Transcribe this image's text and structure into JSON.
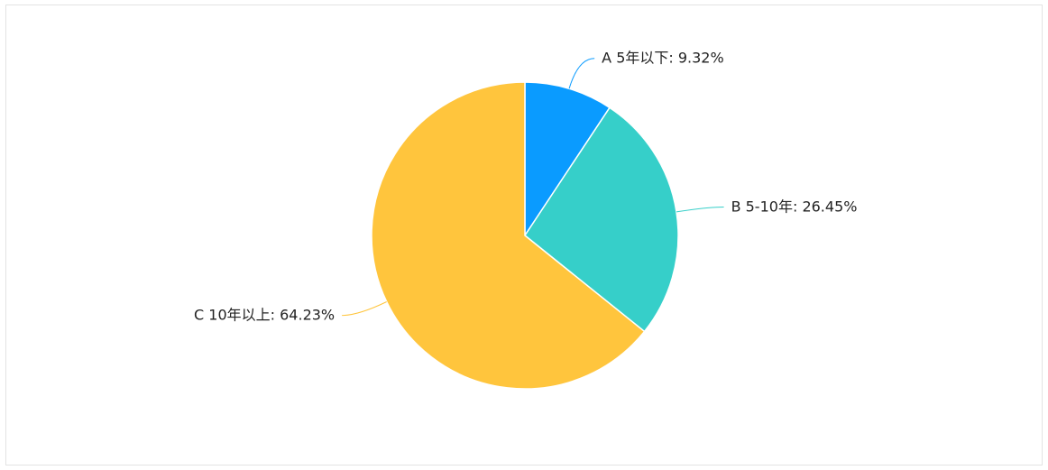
{
  "chart_data": {
    "type": "pie",
    "categories": [
      "A 5年以下",
      "B 5-10年",
      "C 10年以上"
    ],
    "values": [
      9.32,
      26.45,
      64.23
    ],
    "value_labels": [
      "9.32%",
      "26.45%",
      "64.23%"
    ],
    "label_separator": ": ",
    "colors": [
      "#0a9bff",
      "#36cfc9",
      "#ffc53d"
    ]
  }
}
